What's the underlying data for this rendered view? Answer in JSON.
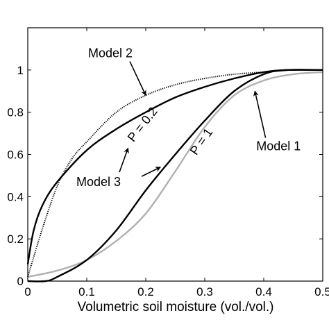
{
  "chart_data": {
    "type": "line",
    "title": "",
    "xlabel": "Volumetric soil moisture (vol./vol.)",
    "ylabel": "",
    "xlim": [
      0,
      0.5
    ],
    "ylim": [
      0,
      1.2
    ],
    "xticks": [
      0,
      0.1,
      0.2,
      0.3,
      0.4,
      0.5
    ],
    "xtick_labels": [
      "0",
      "0.1",
      "0.2",
      "0.3",
      "0.4",
      "0.5"
    ],
    "yticks": [
      0,
      0.2,
      0.4,
      0.6,
      0.8,
      1
    ],
    "ytick_labels": [
      "0",
      "0.2",
      "0.4",
      "0.6",
      "0.8",
      "1"
    ],
    "grid": false,
    "legend": "none",
    "series": [
      {
        "name": "Model 1",
        "color": "#b0b0b0",
        "style": "solid",
        "x": [
          0,
          0.05,
          0.1,
          0.15,
          0.2,
          0.25,
          0.3,
          0.35,
          0.4,
          0.45,
          0.5
        ],
        "y": [
          0.02,
          0.05,
          0.1,
          0.19,
          0.32,
          0.52,
          0.73,
          0.88,
          0.95,
          0.98,
          0.99
        ]
      },
      {
        "name": "Model 2",
        "color": "#000000",
        "style": "dotted",
        "x": [
          0,
          0.025,
          0.05,
          0.075,
          0.1,
          0.15,
          0.2,
          0.25,
          0.3,
          0.35,
          0.4,
          0.45,
          0.5
        ],
        "y": [
          0.02,
          0.25,
          0.45,
          0.58,
          0.66,
          0.8,
          0.88,
          0.93,
          0.96,
          0.98,
          0.99,
          1.0,
          1.0
        ]
      },
      {
        "name": "P = 0.2",
        "color": "#000000",
        "style": "solid",
        "x": [
          0,
          0.01,
          0.025,
          0.05,
          0.1,
          0.15,
          0.2,
          0.25,
          0.3,
          0.35,
          0.4,
          0.44,
          0.5
        ],
        "y": [
          0.08,
          0.24,
          0.36,
          0.47,
          0.62,
          0.72,
          0.8,
          0.87,
          0.92,
          0.96,
          0.99,
          1.0,
          1.0
        ]
      },
      {
        "name": "P = 1",
        "color": "#000000",
        "style": "solid",
        "x": [
          0,
          0.03,
          0.05,
          0.1,
          0.15,
          0.2,
          0.25,
          0.3,
          0.35,
          0.4,
          0.44,
          0.5
        ],
        "y": [
          0.0,
          0.0,
          0.02,
          0.1,
          0.24,
          0.43,
          0.6,
          0.76,
          0.9,
          0.98,
          1.0,
          1.0
        ]
      }
    ],
    "annotations": [
      {
        "id": "model2",
        "text": "Model 2",
        "x": 0.14,
        "y": 1.06,
        "arrow_to": [
          0.2,
          0.88
        ]
      },
      {
        "id": "model1",
        "text": "Model 1",
        "x": 0.425,
        "y": 0.62,
        "arrow_to": [
          0.385,
          0.9
        ]
      },
      {
        "id": "model3",
        "text": "Model 3",
        "x": 0.12,
        "y": 0.45,
        "arrow_tips": [
          [
            0.17,
            0.63
          ],
          [
            0.225,
            0.54
          ]
        ]
      },
      {
        "id": "p02",
        "text": "P = 0.2",
        "x": 0.2,
        "y": 0.73,
        "rotate": -52
      },
      {
        "id": "p1",
        "text": "P = 1",
        "x": 0.3,
        "y": 0.65,
        "rotate": -55
      }
    ]
  }
}
